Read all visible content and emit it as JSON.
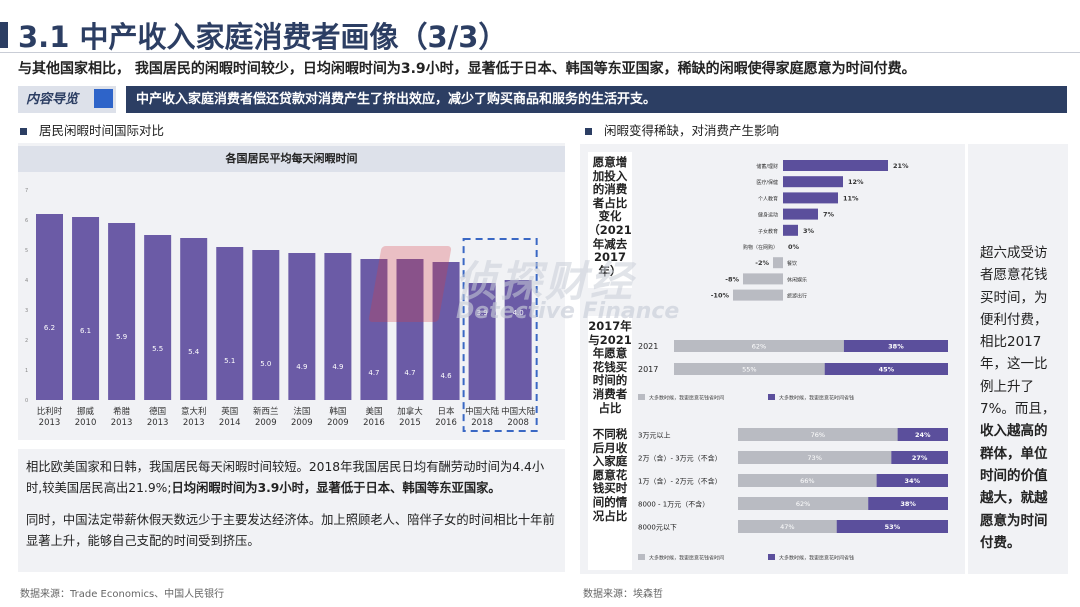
{
  "header": {
    "title": "3.1 中产收入家庭消费者画像（3/3）",
    "subtitle": "与其他国家相比， 我国居民的闲暇时间较少，日均闲暇时间为3.9小时，显著低于日本、韩国等东亚国家，稀缺的闲暇使得家庭愿意为时间付费。"
  },
  "nav": {
    "label": "内容导览",
    "text": "中产收入家庭消费者偿还贷款对消费产生了挤出效应，减少了购买商品和服务的生活开支。"
  },
  "left": {
    "heading": "居民闲暇时间国际对比",
    "source": "数据来源：Trade Economics、中国人民银行",
    "para1_plain": "相比欧美国家和日韩，我国居民每天闲暇时间较短。2018年我国居民日均有酬劳动时间为4.4小时,较美国居民高出21.9%;",
    "para1_bold": "日均闲暇时间为3.9小时，显著低于日本、韩国等东亚国家。",
    "para2": "同时，中国法定带薪休假天数远少于主要发达经济体。加上照顾老人、陪伴子女的时间相比十年前显著上升，能够自己支配的时间受到挤压。"
  },
  "right": {
    "heading": "闲暇变得稀缺，对消费产生影响",
    "source": "数据来源：埃森哲",
    "row_labels": [
      "愿意增加投入的消费者占比变化（2021年减去2017年）",
      "2017年与2021年愿意花钱买时间的消费者占比",
      "不同税后月收入家庭愿意花钱买时间的情况占比"
    ],
    "note_plain1": "超六成受访者愿意花钱买时间，为便利付费，相比2017年，这一比例上升了7%。而且，",
    "note_bold": "收入越高的群体，单位时间的价值越大，就越愿意为时间付费。"
  },
  "watermark": {
    "cn": "侦探财经",
    "en": "Detective Finance"
  },
  "colors": {
    "title": "#2c3e63",
    "bar": "#6b5ba6",
    "bar_dark": "#5b4f9c",
    "grey_bar": "#b9bbc2",
    "highlight_box": "#3a68c4"
  },
  "chart_data": [
    {
      "type": "bar",
      "title": "各国居民平均每天闲暇时间",
      "categories": [
        "比利时 2013",
        "挪威 2010",
        "希腊 2013",
        "德国 2013",
        "意大利 2013",
        "英国 2014",
        "新西兰 2009",
        "法国 2009",
        "韩国 2009",
        "美国 2016",
        "加拿大 2015",
        "日本 2016",
        "中国大陆 2018",
        "中国大陆 2008"
      ],
      "labels_line1": [
        "比利时",
        "挪威",
        "希腊",
        "德国",
        "意大利",
        "英国",
        "新西兰",
        "法国",
        "韩国",
        "美国",
        "加拿大",
        "日本",
        "中国大陆",
        "中国大陆"
      ],
      "labels_line2": [
        "2013",
        "2010",
        "2013",
        "2013",
        "2013",
        "2014",
        "2009",
        "2009",
        "2009",
        "2016",
        "2015",
        "2016",
        "2018",
        "2008"
      ],
      "values": [
        6.2,
        6.1,
        5.9,
        5.5,
        5.4,
        5.1,
        5.0,
        4.9,
        4.9,
        4.7,
        4.7,
        4.6,
        3.9,
        4.0
      ],
      "value_labels": [
        "6.2",
        "6.1",
        "5.9",
        "5.5",
        "5.4",
        "5.1",
        "5.0",
        "4.9",
        "4.9",
        "4.7",
        "4.7",
        "4.6",
        "3.9",
        "4.0"
      ],
      "y_ticks": [
        "7",
        "6",
        "5",
        "4",
        "3",
        "2",
        "1",
        "0"
      ],
      "ylim": [
        0,
        7
      ],
      "highlight": [
        "中国大陆 2018",
        "中国大陆 2008"
      ]
    },
    {
      "type": "bar",
      "categories": [
        "储蓄/理财",
        "医疗/保健",
        "个人教育",
        "健身运动",
        "子女教育",
        "购物（在网购）",
        "餐饮",
        "休闲娱乐",
        "旅游出行"
      ],
      "values": [
        21,
        12,
        11,
        7,
        3,
        0,
        -2,
        -8,
        -10
      ],
      "value_labels": [
        "21%",
        "12%",
        "11%",
        "7%",
        "3%",
        "0%",
        "-2%",
        "-8%",
        "-10%"
      ]
    },
    {
      "type": "bar",
      "stacked": true,
      "categories": [
        "2021",
        "2017"
      ],
      "series": [
        {
          "name": "大多数时候，我更愿意花钱省时间",
          "values": [
            62,
            55
          ]
        },
        {
          "name": "大多数时候，我更愿意花时间省钱",
          "values": [
            38,
            45
          ]
        }
      ]
    },
    {
      "type": "bar",
      "stacked": true,
      "categories": [
        "3万元以上",
        "2万（含）- 3万元（不含）",
        "1万（含）- 2万元（不含）",
        "8000 - 1万元（不含）",
        "8000元以下"
      ],
      "series": [
        {
          "name": "大多数时候，我更愿意花钱省时间",
          "values": [
            76,
            73,
            66,
            62,
            47
          ]
        },
        {
          "name": "大多数时候，我更愿意花时间省钱",
          "values": [
            24,
            27,
            34,
            38,
            53
          ]
        }
      ]
    }
  ]
}
